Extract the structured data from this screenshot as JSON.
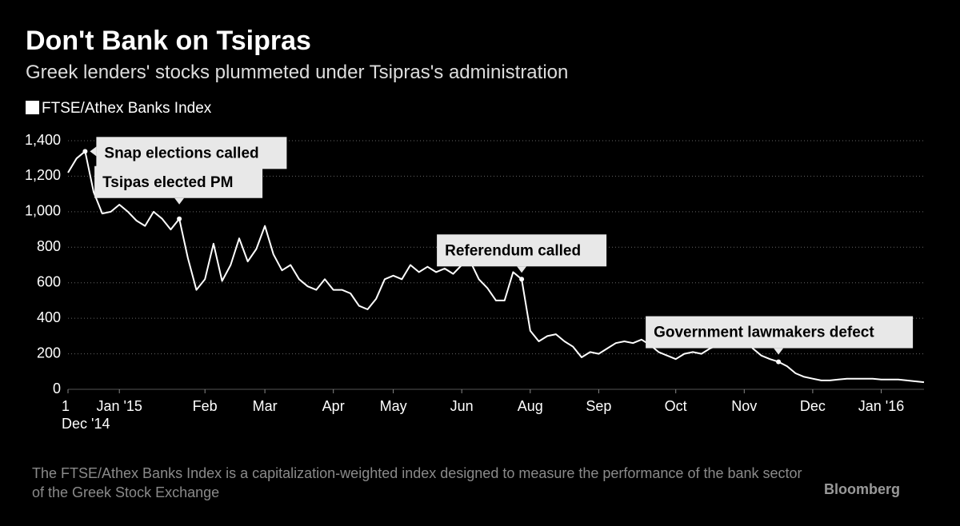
{
  "chart_data": {
    "type": "line",
    "title": "Don't Bank on Tsipras",
    "subtitle": "Greek lenders' stocks plummeted under Tsipras's administration",
    "note": "The FTSE/Athex Banks Index is a capitalization-weighted index designed to measure the performance of the bank sector of the Greek Stock Exchange",
    "source": "Bloomberg",
    "categories": [
      "1\nDec '14",
      null,
      null,
      null,
      null,
      null,
      "Jan '15",
      null,
      null,
      null,
      null,
      null,
      null,
      null,
      null,
      null,
      "Feb",
      null,
      null,
      null,
      null,
      null,
      null,
      "Mar",
      null,
      null,
      null,
      null,
      null,
      null,
      null,
      "Apr",
      null,
      null,
      null,
      null,
      null,
      null,
      "May",
      null,
      null,
      null,
      null,
      null,
      null,
      null,
      "Jun",
      null,
      null,
      null,
      null,
      null,
      null,
      null,
      "Aug",
      null,
      null,
      null,
      null,
      null,
      null,
      null,
      "Sep",
      null,
      null,
      null,
      null,
      null,
      null,
      null,
      null,
      "Oct",
      null,
      null,
      null,
      null,
      null,
      null,
      null,
      "Nov",
      null,
      null,
      null,
      null,
      null,
      null,
      null,
      "Dec",
      null,
      null,
      null,
      null,
      null,
      null,
      null,
      "Jan '16",
      null,
      null,
      null,
      null,
      null
    ],
    "series": [
      {
        "name": "FTSE/Athex Banks Index",
        "color": "#ffffff",
        "values": [
          1220,
          1300,
          1340,
          1110,
          990,
          1000,
          1040,
          1000,
          950,
          920,
          1000,
          960,
          900,
          960,
          740,
          560,
          620,
          820,
          610,
          700,
          850,
          720,
          790,
          920,
          760,
          670,
          700,
          620,
          580,
          560,
          620,
          560,
          560,
          540,
          470,
          450,
          510,
          620,
          640,
          620,
          700,
          660,
          690,
          660,
          680,
          650,
          700,
          720,
          620,
          570,
          500,
          500,
          660,
          620,
          330,
          270,
          300,
          310,
          270,
          240,
          180,
          210,
          200,
          230,
          260,
          270,
          260,
          280,
          250,
          210,
          190,
          170,
          200,
          210,
          200,
          230,
          250,
          270,
          280,
          290,
          230,
          190,
          170,
          155,
          130,
          90,
          70,
          60,
          50,
          50,
          55,
          60,
          60,
          60,
          60,
          55,
          55,
          55,
          50,
          45,
          40
        ]
      }
    ],
    "annotations": [
      {
        "text": "Snap elections called",
        "point": 2
      },
      {
        "text": "Tsipas elected PM",
        "point": 13
      },
      {
        "text": "Referendum called",
        "point": 53
      },
      {
        "text": "Government lawmakers defect",
        "point": 83
      }
    ],
    "ylim": [
      0,
      1400
    ],
    "yticks": [
      0,
      200,
      400,
      600,
      800,
      {
        "value": 1000,
        "label": "1,000"
      },
      {
        "value": 1200,
        "label": "1,200"
      },
      {
        "value": 1400,
        "label": "1,400"
      }
    ],
    "grid": true
  }
}
